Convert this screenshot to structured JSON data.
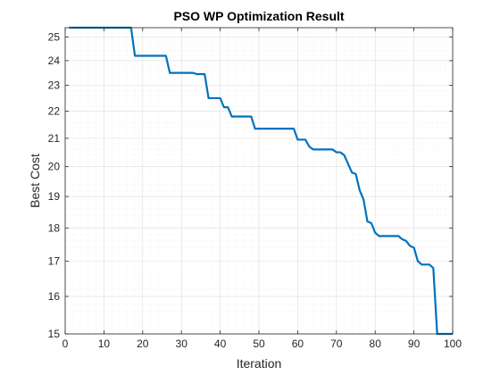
{
  "chart_data": {
    "type": "line",
    "title": "PSO WP Optimization Result",
    "xlabel": "Iteration",
    "ylabel": "Best Cost",
    "xlim": [
      0,
      100
    ],
    "ylim": [
      15,
      25.4
    ],
    "y_scale": "log",
    "grid": true,
    "minor_grid": true,
    "x_ticks": [
      0,
      10,
      20,
      30,
      40,
      50,
      60,
      70,
      80,
      90,
      100
    ],
    "y_ticks": [
      15,
      16,
      17,
      18,
      19,
      20,
      21,
      22,
      23,
      24,
      25
    ],
    "line_color": "#0072BD",
    "series": [
      {
        "x": [
          1,
          17,
          18,
          26,
          27,
          33,
          34,
          36,
          37,
          40,
          41,
          42,
          43,
          48,
          49,
          59,
          60,
          62,
          63,
          64,
          65,
          69,
          70,
          71,
          72,
          73,
          74,
          75,
          76,
          77,
          78,
          79,
          80,
          81,
          82,
          86,
          87,
          88,
          89,
          90,
          91,
          92,
          94,
          95,
          96,
          100
        ],
        "y": [
          25.4,
          25.4,
          24.2,
          24.2,
          23.5,
          23.5,
          23.45,
          23.45,
          22.5,
          22.5,
          22.15,
          22.15,
          21.8,
          21.8,
          21.35,
          21.35,
          20.95,
          20.95,
          20.7,
          20.6,
          20.6,
          20.6,
          20.5,
          20.5,
          20.4,
          20.1,
          19.8,
          19.75,
          19.2,
          18.9,
          18.2,
          18.15,
          17.85,
          17.75,
          17.75,
          17.75,
          17.65,
          17.6,
          17.45,
          17.4,
          17.0,
          16.9,
          16.9,
          16.8,
          15.0,
          15.0
        ]
      }
    ]
  }
}
